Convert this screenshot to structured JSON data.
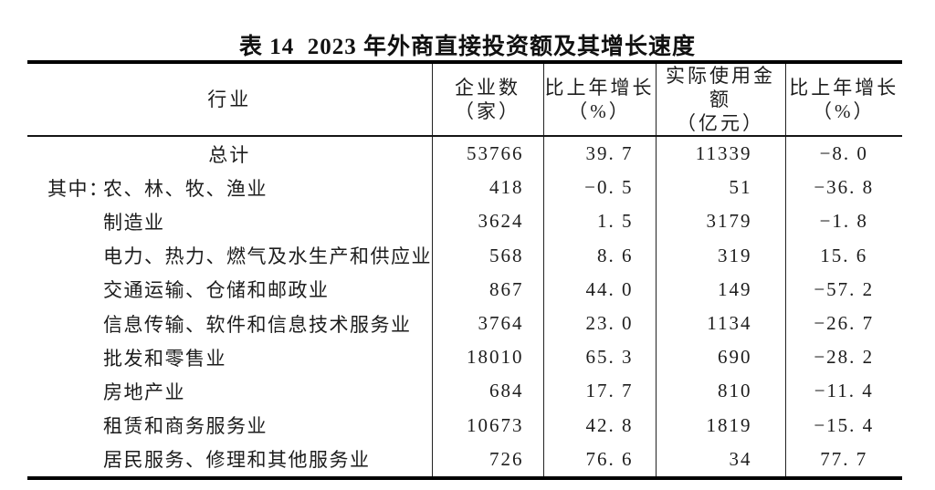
{
  "title": "表 14  2023 年外商直接投资额及其增长速度",
  "table": {
    "columns": [
      {
        "label": "行业",
        "unit": ""
      },
      {
        "label": "企业数",
        "unit": "（家）"
      },
      {
        "label": "比上年增长",
        "unit": "（%）"
      },
      {
        "label": "实际使用金额",
        "unit": "（亿元）"
      },
      {
        "label": "比上年增长",
        "unit": "（%）"
      }
    ],
    "rows": [
      {
        "prefix": "",
        "industry": "总计",
        "industry_align": "center",
        "enterprises": "53766",
        "enterprises_growth": "39.7",
        "amount_used": "11339",
        "amount_growth": "-8.0"
      },
      {
        "prefix": "其中：",
        "industry": "农、林、牧、渔业",
        "industry_align": "left",
        "enterprises": "418",
        "enterprises_growth": "-0.5",
        "amount_used": "51",
        "amount_growth": "-36.8"
      },
      {
        "prefix": "",
        "industry": "制造业",
        "industry_align": "left",
        "enterprises": "3624",
        "enterprises_growth": "1.5",
        "amount_used": "3179",
        "amount_growth": "-1.8"
      },
      {
        "prefix": "",
        "industry": "电力、热力、燃气及水生产和供应业",
        "industry_align": "left",
        "enterprises": "568",
        "enterprises_growth": "8.6",
        "amount_used": "319",
        "amount_growth": "15.6"
      },
      {
        "prefix": "",
        "industry": "交通运输、仓储和邮政业",
        "industry_align": "left",
        "enterprises": "867",
        "enterprises_growth": "44.0",
        "amount_used": "149",
        "amount_growth": "-57.2"
      },
      {
        "prefix": "",
        "industry": "信息传输、软件和信息技术服务业",
        "industry_align": "left",
        "enterprises": "3764",
        "enterprises_growth": "23.0",
        "amount_used": "1134",
        "amount_growth": "-26.7"
      },
      {
        "prefix": "",
        "industry": "批发和零售业",
        "industry_align": "left",
        "enterprises": "18010",
        "enterprises_growth": "65.3",
        "amount_used": "690",
        "amount_growth": "-28.2"
      },
      {
        "prefix": "",
        "industry": "房地产业",
        "industry_align": "left",
        "enterprises": "684",
        "enterprises_growth": "17.7",
        "amount_used": "810",
        "amount_growth": "-11.4"
      },
      {
        "prefix": "",
        "industry": "租赁和商务服务业",
        "industry_align": "left",
        "enterprises": "10673",
        "enterprises_growth": "42.8",
        "amount_used": "1819",
        "amount_growth": "-15.4"
      },
      {
        "prefix": "",
        "industry": "居民服务、修理和其他服务业",
        "industry_align": "left",
        "enterprises": "726",
        "enterprises_growth": "76.6",
        "amount_used": "34",
        "amount_growth": "77.7"
      }
    ]
  }
}
